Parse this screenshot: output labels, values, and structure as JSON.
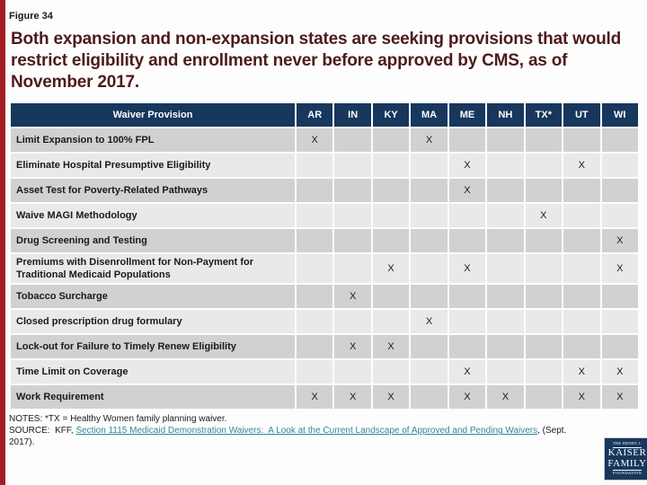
{
  "figure_label": "Figure 34",
  "title": "Both expansion and non-expansion states are seeking provisions that would restrict eligibility and enrollment never before approved by CMS, as of November 2017.",
  "table": {
    "provision_header": "Waiver Provision",
    "states": [
      "AR",
      "IN",
      "KY",
      "MA",
      "ME",
      "NH",
      "TX*",
      "UT",
      "WI"
    ],
    "mark": "X",
    "rows": [
      {
        "provision": "Limit Expansion to 100% FPL",
        "marks": [
          "AR",
          "MA"
        ]
      },
      {
        "provision": "Eliminate Hospital Presumptive Eligibility",
        "marks": [
          "ME",
          "UT"
        ]
      },
      {
        "provision": "Asset Test for Poverty-Related Pathways",
        "marks": [
          "ME"
        ]
      },
      {
        "provision": "Waive MAGI Methodology",
        "marks": [
          "TX*"
        ]
      },
      {
        "provision": "Drug Screening and Testing",
        "marks": [
          "WI"
        ]
      },
      {
        "provision": "Premiums with Disenrollment for Non-Payment for Traditional Medicaid Populations",
        "marks": [
          "KY",
          "ME",
          "WI"
        ]
      },
      {
        "provision": "Tobacco Surcharge",
        "marks": [
          "IN"
        ]
      },
      {
        "provision": "Closed prescription drug formulary",
        "marks": [
          "MA"
        ]
      },
      {
        "provision": "Lock-out for Failure to Timely Renew Eligibility",
        "marks": [
          "IN",
          "KY"
        ]
      },
      {
        "provision": "Time Limit on Coverage",
        "marks": [
          "ME",
          "UT",
          "WI"
        ]
      },
      {
        "provision": "Work Requirement",
        "marks": [
          "AR",
          "IN",
          "KY",
          "ME",
          "NH",
          "UT",
          "WI"
        ]
      }
    ]
  },
  "footer": {
    "notes_line": "NOTES: *TX = Healthy Women family planning waiver.",
    "source_prefix": "SOURCE:  KFF, ",
    "source_link": "Section 1115 Medicaid Demonstration Waivers:  A Look at the Current Landscape of Approved and Pending Waivers",
    "source_suffix": ", (Sept. 2017)."
  },
  "logo": {
    "line1": "THE HENRY J.",
    "line2": "KAISER",
    "line3": "FAMILY",
    "line4": "FOUNDATION"
  },
  "colors": {
    "accent_bar": "#a11d21",
    "header_bg": "#17375d",
    "row_dark": "#d1d1d1",
    "row_light": "#e9e9e9",
    "title": "#4d1b1b",
    "link": "#31859b"
  }
}
